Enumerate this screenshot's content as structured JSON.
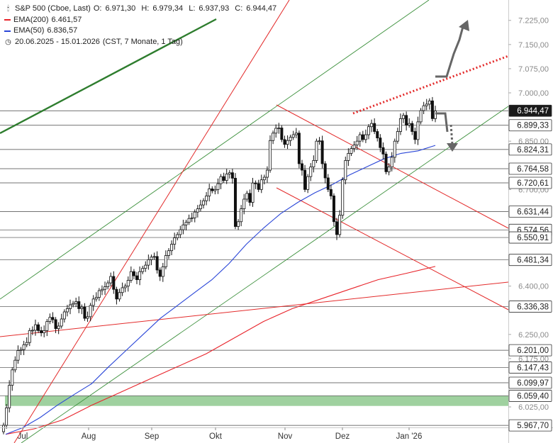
{
  "header": {
    "symbol_icon": "candlestick-icon",
    "title": "S&P 500 (Cboe, Last)",
    "ohlc": [
      {
        "label": "O:",
        "value": "6.971,30"
      },
      {
        "label": "H:",
        "value": "6.979,34"
      },
      {
        "label": "L:",
        "value": "6.937,93"
      },
      {
        "label": "C:",
        "value": "6.944,47"
      }
    ],
    "indicators": [
      {
        "label": "EMA(200)",
        "value": "6.461,57",
        "color": "#e8232a"
      },
      {
        "label": "EMA(50)",
        "value": "6.836,57",
        "color": "#2a46d8"
      }
    ],
    "range_icon": "clock-icon",
    "range": "20.06.2025 - 15.01.2026",
    "range_note": "(CST, 7 Monate, 1 Tag)"
  },
  "chart_data": {
    "type": "candlestick",
    "ylim": [
      5940,
      7270
    ],
    "x_tick_labels": [
      "Jul",
      "Aug",
      "Sep",
      "Okt",
      "Nov",
      "Dez",
      "Jan '26"
    ],
    "y_tick_labels": [
      "7.225,00",
      "7.150,00",
      "7.075,00",
      "7.000,00",
      "6.850,00",
      "6.700,00",
      "6.400,00",
      "6.250,00",
      "6.175,00",
      "6.025,00"
    ],
    "y_tick_values": [
      7225,
      7150,
      7075,
      7000,
      6850,
      6700,
      6400,
      6250,
      6175,
      6025
    ],
    "levels": [
      {
        "value": 6944.47,
        "label": "6.944,47",
        "highlight": true
      },
      {
        "value": 6899.33,
        "label": "6.899,33"
      },
      {
        "value": 6824.31,
        "label": "6.824,31"
      },
      {
        "value": 6764.58,
        "label": "6.764,58"
      },
      {
        "value": 6720.61,
        "label": "6.720,61"
      },
      {
        "value": 6631.44,
        "label": "6.631,44"
      },
      {
        "value": 6574.56,
        "label": "6.574,56"
      },
      {
        "value": 6550.91,
        "label": "6.550,91"
      },
      {
        "value": 6481.34,
        "label": "6.481,34"
      },
      {
        "value": 6336.38,
        "label": "6.336,38"
      },
      {
        "value": 6201.0,
        "label": "6.201,00"
      },
      {
        "value": 6147.43,
        "label": "6.147,43"
      },
      {
        "value": 6099.97,
        "label": "6.099,97"
      },
      {
        "value": 6059.4,
        "label": "6.059,40"
      },
      {
        "value": 5967.7,
        "label": "5.967,70"
      }
    ],
    "support_zone": [
      6028,
      6059.4
    ],
    "closes": [
      5968,
      6022,
      6092,
      6140,
      6170,
      6200,
      6203,
      6218,
      6225,
      6262,
      6263,
      6280,
      6262,
      6255,
      6262,
      6290,
      6303,
      6296,
      6268,
      6276,
      6298,
      6320,
      6330,
      6342,
      6346,
      6352,
      6330,
      6335,
      6300,
      6305,
      6340,
      6360,
      6365,
      6386,
      6390,
      6398,
      6410,
      6430,
      6390,
      6360,
      6380,
      6395,
      6400,
      6418,
      6445,
      6432,
      6420,
      6445,
      6455,
      6465,
      6482,
      6490,
      6492,
      6450,
      6430,
      6460,
      6495,
      6510,
      6530,
      6550,
      6560,
      6575,
      6590,
      6598,
      6610,
      6612,
      6630,
      6640,
      6652,
      6665,
      6680,
      6702,
      6696,
      6700,
      6718,
      6740,
      6728,
      6748,
      6752,
      6735,
      6585,
      6600,
      6640,
      6670,
      6688,
      6660,
      6720,
      6718,
      6700,
      6730,
      6738,
      6760,
      6852,
      6875,
      6890,
      6891,
      6855,
      6840,
      6852,
      6862,
      6870,
      6875,
      6780,
      6760,
      6700,
      6740,
      6770,
      6790,
      6850,
      6851,
      6780,
      6736,
      6700,
      6680,
      6600,
      6560,
      6620,
      6730,
      6790,
      6812,
      6827,
      6838,
      6850,
      6870,
      6855,
      6870,
      6895,
      6905,
      6880,
      6860,
      6830,
      6810,
      6755,
      6770,
      6800,
      6850,
      6880,
      6920,
      6930,
      6900,
      6905,
      6880,
      6855,
      6910,
      6945,
      6960,
      6965,
      6975,
      6920,
      6944
    ],
    "ema50": [
      5940,
      5961,
      5992,
      6030,
      6064,
      6097,
      6150,
      6200,
      6250,
      6300,
      6340,
      6380,
      6420,
      6470,
      6530,
      6580,
      6625,
      6660,
      6690,
      6715,
      6745,
      6770,
      6795,
      6812,
      6820,
      6837
    ],
    "ema200": [
      5940,
      5957,
      5985,
      6030,
      6070,
      6110,
      6150,
      6190,
      6240,
      6290,
      6330,
      6360,
      6390,
      6420,
      6440,
      6461
    ]
  }
}
